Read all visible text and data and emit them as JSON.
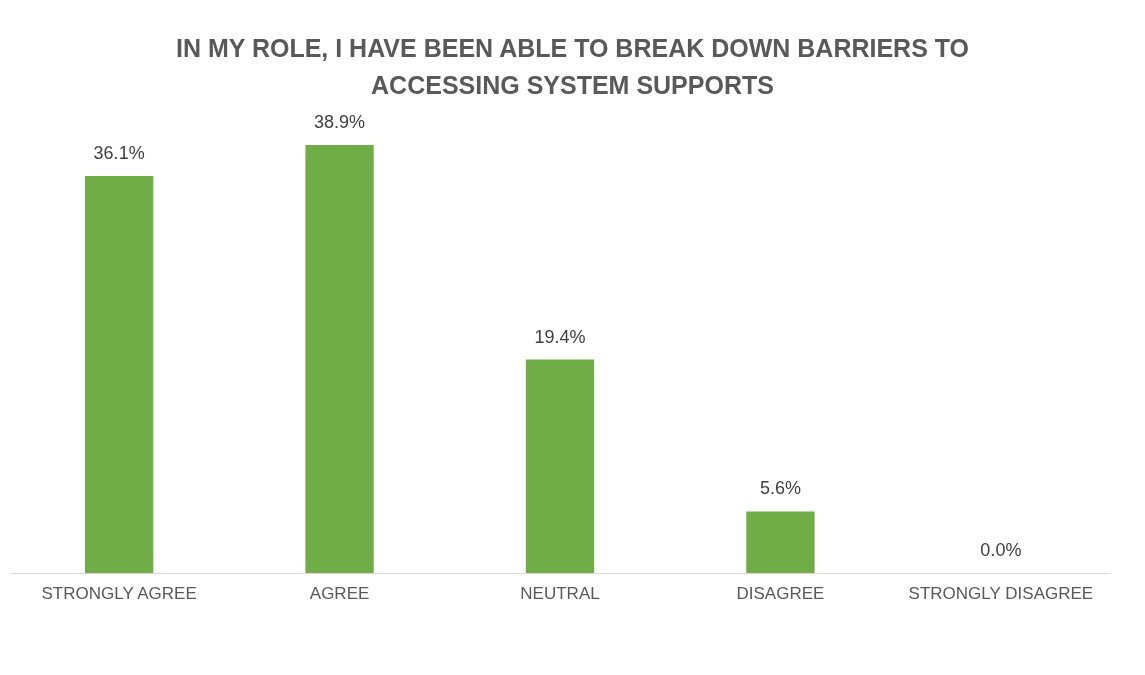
{
  "chart_data": {
    "type": "bar",
    "title": "IN MY ROLE, I HAVE BEEN ABLE TO BREAK DOWN BARRIERS TO ACCESSING SYSTEM SUPPORTS",
    "categories": [
      "STRONGLY AGREE",
      "AGREE",
      "NEUTRAL",
      "DISAGREE",
      "STRONGLY DISAGREE"
    ],
    "values": [
      36.1,
      38.9,
      19.4,
      5.6,
      0.0
    ],
    "value_labels": [
      "36.1%",
      "38.9%",
      "19.4%",
      "5.6%",
      "0.0%"
    ],
    "color": "#70ad47",
    "grid": false
  }
}
